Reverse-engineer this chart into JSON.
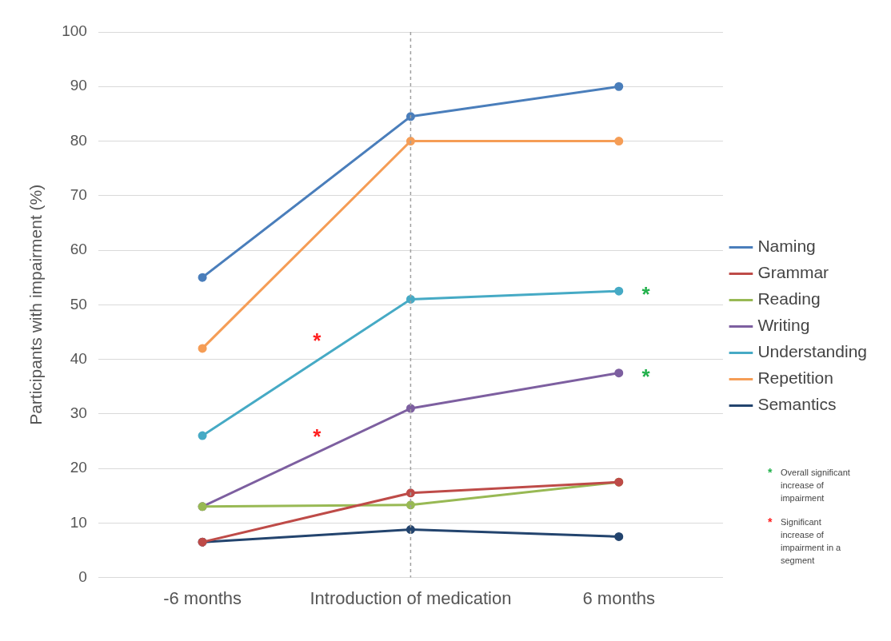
{
  "chart_data": {
    "type": "line",
    "ylabel": "Participants with impairment (%)",
    "categories": [
      "-6 months",
      "Introduction of medication",
      "6 months"
    ],
    "series": [
      {
        "name": "Naming",
        "color": "#4a7ebb",
        "values": [
          55,
          84.5,
          90
        ]
      },
      {
        "name": "Grammar",
        "color": "#be4b48",
        "values": [
          6.5,
          15.5,
          17.5
        ]
      },
      {
        "name": "Reading",
        "color": "#98b954",
        "values": [
          13,
          13.3,
          17.5
        ]
      },
      {
        "name": "Writing",
        "color": "#7d5fa0",
        "values": [
          13,
          31,
          37.5
        ]
      },
      {
        "name": "Understanding",
        "color": "#46aac5",
        "values": [
          26,
          51,
          52.5
        ]
      },
      {
        "name": "Repetition",
        "color": "#f59d56",
        "values": [
          42,
          80,
          80
        ]
      },
      {
        "name": "Semantics",
        "color": "#23446e",
        "values": [
          6.5,
          8.8,
          7.5
        ]
      }
    ],
    "ylim": [
      0,
      100
    ],
    "yticks": [
      0,
      10,
      20,
      30,
      40,
      50,
      60,
      70,
      80,
      90,
      100
    ],
    "grid": "y",
    "legend": "right",
    "marker": "circle",
    "line_style": "solid",
    "ref_lines": [
      {
        "axis": "x",
        "value": "Introduction of medication",
        "color": "#a0a0a0",
        "line_style": "dashed"
      }
    ],
    "annotations": [
      "*",
      "*",
      "*",
      "*",
      "Overall significant increase of impairment",
      "Significant increase of impairment in a segment"
    ]
  }
}
